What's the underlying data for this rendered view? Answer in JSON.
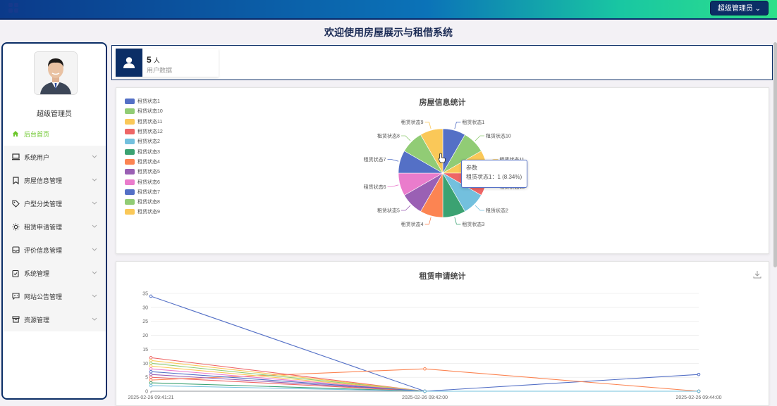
{
  "header": {
    "admin_button": "超级管理员"
  },
  "welcome": "欢迎使用房屋展示与租借系统",
  "sidebar": {
    "user_name": "超级管理员",
    "items": [
      {
        "label": "后台首页",
        "icon": "home-icon",
        "active": true
      },
      {
        "label": "系统用户",
        "icon": "monitor-icon"
      },
      {
        "label": "房屋信息管理",
        "icon": "bookmark-icon"
      },
      {
        "label": "户型分类管理",
        "icon": "tag-icon"
      },
      {
        "label": "租赁申请管理",
        "icon": "sun-icon"
      },
      {
        "label": "评价信息管理",
        "icon": "inbox-icon"
      },
      {
        "label": "系统管理",
        "icon": "clipboard-icon"
      },
      {
        "label": "网站公告管理",
        "icon": "message-icon"
      },
      {
        "label": "资源管理",
        "icon": "archive-icon"
      }
    ]
  },
  "stats": {
    "value": "5",
    "unit": "人",
    "label": "用户数据"
  },
  "pie": {
    "title": "房屋信息统计",
    "tooltip_title": "参数",
    "tooltip_value": "租赁状态1：1 (8.34%)"
  },
  "line": {
    "title": "租赁申请统计"
  },
  "chart_data": [
    {
      "type": "pie",
      "title": "房屋信息统计",
      "categories": [
        "租赁状态1",
        "租赁状态10",
        "租赁状态11",
        "租赁状态12",
        "租赁状态2",
        "租赁状态3",
        "租赁状态4",
        "租赁状态5",
        "租赁状态6",
        "租赁状态7",
        "租赁状态8",
        "租赁状态9"
      ],
      "values": [
        1,
        1,
        1,
        1,
        1,
        1,
        1,
        1,
        1,
        1,
        1,
        1
      ],
      "colors": [
        "#5470c6",
        "#91cc75",
        "#fac858",
        "#ee6666",
        "#73c0de",
        "#3ba272",
        "#fc8452",
        "#9a60b4",
        "#ea7ccc",
        "#5470c6",
        "#91cc75",
        "#fac858"
      ],
      "legend": "top-left"
    },
    {
      "type": "line",
      "title": "租赁申请统计",
      "x": [
        "2025-02-26 09:41:21",
        "2025-02-26 09:42:00",
        "2025-02-26 09:44:00"
      ],
      "ylim": [
        0,
        35
      ],
      "yticks": [
        0,
        5,
        10,
        15,
        20,
        25,
        30,
        35
      ],
      "grid": true,
      "series": [
        {
          "color": "#5470c6",
          "values": [
            34,
            0,
            6
          ]
        },
        {
          "color": "#fc8452",
          "values": [
            4,
            8,
            0
          ]
        },
        {
          "color": "#ee6666",
          "values": [
            12,
            0,
            0
          ]
        },
        {
          "color": "#fac858",
          "values": [
            11,
            0,
            0
          ]
        },
        {
          "color": "#91cc75",
          "values": [
            10,
            0,
            0
          ]
        },
        {
          "color": "#fac858",
          "values": [
            9,
            0,
            0
          ]
        },
        {
          "color": "#ea7ccc",
          "values": [
            8,
            0,
            0
          ]
        },
        {
          "color": "#9a60b4",
          "values": [
            6,
            0,
            0
          ]
        },
        {
          "color": "#ee6666",
          "values": [
            5,
            0,
            0
          ]
        },
        {
          "color": "#5470c6",
          "values": [
            7,
            0,
            0
          ]
        },
        {
          "color": "#3ba272",
          "values": [
            3,
            0,
            0
          ]
        },
        {
          "color": "#73c0de",
          "values": [
            2,
            0,
            0
          ]
        }
      ]
    }
  ]
}
